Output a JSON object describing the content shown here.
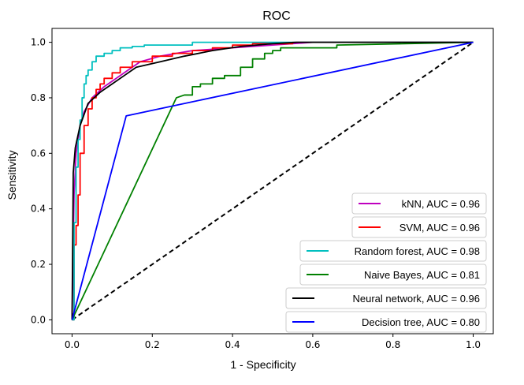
{
  "chart_data": {
    "type": "line",
    "title": "ROC",
    "xlabel": "1 - Specificity",
    "ylabel": "Sensitivity",
    "xlim": [
      -0.05,
      1.05
    ],
    "ylim": [
      -0.05,
      1.05
    ],
    "xticks": [
      "0.0",
      "0.2",
      "0.4",
      "0.6",
      "0.8",
      "1.0"
    ],
    "yticks": [
      "0.0",
      "0.2",
      "0.4",
      "0.6",
      "0.8",
      "1.0"
    ],
    "xtick_values": [
      0,
      0.2,
      0.4,
      0.6,
      0.8,
      1.0
    ],
    "ytick_values": [
      0,
      0.2,
      0.4,
      0.6,
      0.8,
      1.0
    ],
    "grid": false,
    "legend_position": "lower-right",
    "reference_line": {
      "x": [
        0,
        1
      ],
      "y": [
        0,
        1
      ],
      "style": "dashed",
      "color": "#000000"
    },
    "series": [
      {
        "name": "kNN, AUC = 0.96",
        "color": "#bf00bf",
        "x": [
          0,
          0.005,
          0.01,
          0.02,
          0.03,
          0.05,
          0.08,
          0.1,
          0.13,
          0.17,
          0.22,
          0.3,
          0.4,
          0.5,
          0.6,
          1.0
        ],
        "y": [
          0,
          0.45,
          0.6,
          0.7,
          0.75,
          0.8,
          0.84,
          0.86,
          0.89,
          0.93,
          0.95,
          0.97,
          0.98,
          0.99,
          1.0,
          1.0
        ]
      },
      {
        "name": "SVM, AUC = 0.96",
        "color": "#ff0000",
        "x": [
          0,
          0.005,
          0.005,
          0.01,
          0.01,
          0.015,
          0.015,
          0.02,
          0.02,
          0.03,
          0.03,
          0.04,
          0.04,
          0.05,
          0.05,
          0.06,
          0.06,
          0.07,
          0.07,
          0.08,
          0.08,
          0.1,
          0.1,
          0.12,
          0.12,
          0.15,
          0.15,
          0.2,
          0.2,
          0.25,
          0.25,
          0.3,
          0.3,
          0.35,
          0.35,
          0.4,
          0.4,
          0.45,
          0.45,
          0.55,
          0.55,
          1.0
        ],
        "y": [
          0,
          0,
          0.27,
          0.27,
          0.34,
          0.34,
          0.45,
          0.45,
          0.6,
          0.6,
          0.7,
          0.7,
          0.76,
          0.76,
          0.8,
          0.8,
          0.83,
          0.83,
          0.85,
          0.85,
          0.87,
          0.87,
          0.89,
          0.89,
          0.91,
          0.91,
          0.93,
          0.93,
          0.95,
          0.95,
          0.96,
          0.96,
          0.97,
          0.97,
          0.98,
          0.98,
          0.99,
          0.99,
          0.995,
          0.995,
          1.0,
          1.0
        ]
      },
      {
        "name": "Random forest, AUC = 0.98",
        "color": "#00bfbf",
        "x": [
          0,
          0.005,
          0.005,
          0.01,
          0.01,
          0.015,
          0.015,
          0.02,
          0.02,
          0.025,
          0.025,
          0.03,
          0.03,
          0.035,
          0.035,
          0.04,
          0.04,
          0.05,
          0.05,
          0.06,
          0.06,
          0.08,
          0.08,
          0.1,
          0.1,
          0.12,
          0.12,
          0.15,
          0.15,
          0.18,
          0.18,
          0.3,
          0.3,
          0.45,
          0.45,
          1.0
        ],
        "y": [
          0,
          0,
          0.35,
          0.35,
          0.55,
          0.55,
          0.65,
          0.65,
          0.72,
          0.72,
          0.8,
          0.8,
          0.85,
          0.85,
          0.88,
          0.88,
          0.9,
          0.9,
          0.93,
          0.93,
          0.95,
          0.95,
          0.96,
          0.96,
          0.97,
          0.97,
          0.98,
          0.98,
          0.985,
          0.985,
          0.99,
          0.99,
          1.0,
          1.0,
          1.0,
          1.0
        ]
      },
      {
        "name": "Naive Bayes, AUC = 0.81",
        "color": "#008000",
        "x": [
          0,
          0.26,
          0.28,
          0.3,
          0.3,
          0.32,
          0.32,
          0.35,
          0.35,
          0.38,
          0.38,
          0.42,
          0.42,
          0.45,
          0.45,
          0.48,
          0.48,
          0.5,
          0.5,
          0.52,
          0.52,
          0.66,
          0.66,
          1.0
        ],
        "y": [
          0,
          0.8,
          0.81,
          0.81,
          0.84,
          0.84,
          0.85,
          0.85,
          0.87,
          0.87,
          0.88,
          0.88,
          0.91,
          0.91,
          0.94,
          0.94,
          0.96,
          0.96,
          0.97,
          0.97,
          0.98,
          0.98,
          0.99,
          1.0
        ]
      },
      {
        "name": "Neural network, AUC = 0.96",
        "color": "#000000",
        "x": [
          0,
          0.003,
          0.008,
          0.02,
          0.04,
          0.07,
          0.1,
          0.13,
          0.16,
          0.22,
          0.28,
          0.35,
          0.42,
          0.5,
          0.56,
          1.0
        ],
        "y": [
          0,
          0.53,
          0.62,
          0.7,
          0.78,
          0.82,
          0.85,
          0.88,
          0.91,
          0.93,
          0.95,
          0.97,
          0.985,
          0.995,
          1.0,
          1.0
        ]
      },
      {
        "name": "Decision tree, AUC = 0.80",
        "color": "#0000ff",
        "x": [
          0,
          0.135,
          1.0
        ],
        "y": [
          0,
          0.735,
          1.0
        ]
      }
    ]
  }
}
